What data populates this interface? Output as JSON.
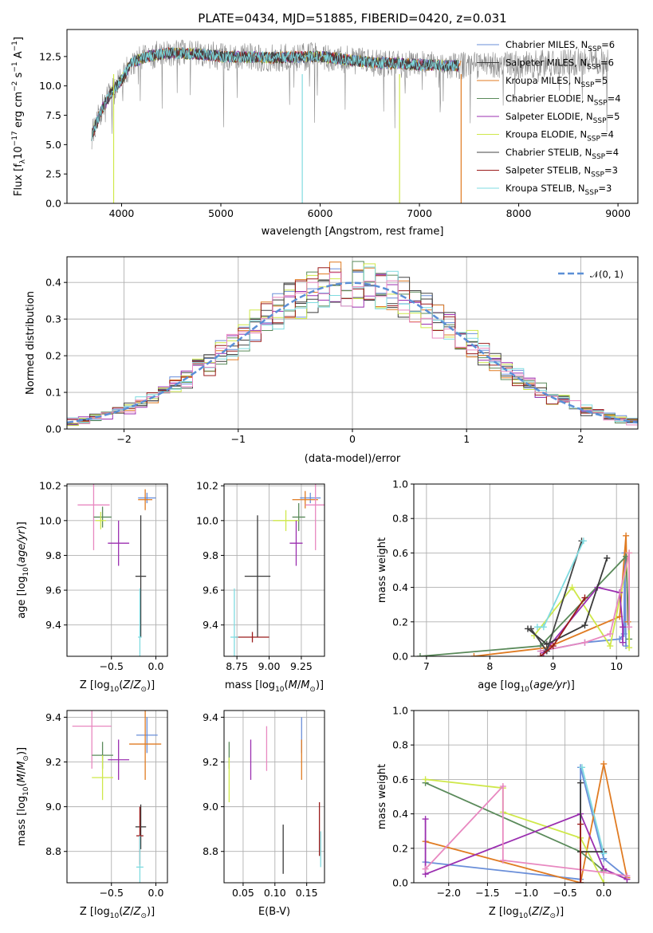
{
  "chart_data": [
    {
      "id": "spectrum",
      "type": "line",
      "title": "PLATE=0434, MJD=51885, FIBERID=0420, z=0.031",
      "xlabel": "wavelength [Angstrom, rest frame]",
      "ylabel": "Flux [f_λ10^-17 erg cm^-2 s^-1 A^-1]",
      "xlim": [
        3450,
        9200
      ],
      "ylim": [
        0,
        14.8
      ],
      "xticks": [
        4000,
        5000,
        6000,
        7000,
        8000,
        9000
      ],
      "yticks": [
        0.0,
        2.5,
        5.0,
        7.5,
        10.0,
        12.5
      ],
      "legend_position": "upper right",
      "legend": [
        {
          "label": "Chabrier MILES, N_SSP=6",
          "color": "#6a8fd9"
        },
        {
          "label": "Salpeter MILES, N_SSP=6",
          "color": "#3a3a3a"
        },
        {
          "label": "Kroupa MILES, N_SSP=5",
          "color": "#e07b22"
        },
        {
          "label": "Chabrier ELODIE, N_SSP=4",
          "color": "#5a8a5a"
        },
        {
          "label": "Salpeter ELODIE, N_SSP=5",
          "color": "#9b2fb0"
        },
        {
          "label": "Kroupa ELODIE, N_SSP=4",
          "color": "#cfe84a"
        },
        {
          "label": "Chabrier STELIB, N_SSP=4",
          "color": "#444444"
        },
        {
          "label": "Salpeter STELIB, N_SSP=3",
          "color": "#9b1c1c"
        },
        {
          "label": "Kroupa STELIB, N_SSP=3",
          "color": "#7fdbe0"
        }
      ],
      "continuum": {
        "x": [
          3700,
          3800,
          3900,
          4000,
          4100,
          4300,
          4500,
          4800,
          5000,
          5500,
          6000,
          6500,
          7000,
          7500,
          8000,
          8500,
          8900
        ],
        "y": [
          5.8,
          8.0,
          9.5,
          10.5,
          12.0,
          12.6,
          12.8,
          12.7,
          12.5,
          12.4,
          12.5,
          12.0,
          11.8,
          11.7,
          11.8,
          12.0,
          12.1
        ]
      },
      "gaps": [
        {
          "x": 3920,
          "color": "#cfe84a"
        },
        {
          "x": 5820,
          "color": "#7fdbe0"
        },
        {
          "x": 6800,
          "color": "#cfe84a"
        },
        {
          "x": 7420,
          "color": "#e07b22"
        }
      ],
      "data_x_range": [
        3700,
        7400
      ]
    },
    {
      "id": "residuals",
      "type": "histogram",
      "xlabel": "(data-model)/error",
      "ylabel": "Normed distribution",
      "xlim": [
        -2.5,
        2.5
      ],
      "ylim": [
        0,
        0.47
      ],
      "xticks": [
        -2,
        -1,
        0,
        1,
        2
      ],
      "yticks": [
        0.0,
        0.1,
        0.2,
        0.3,
        0.4
      ],
      "legend_position": "upper right",
      "legend": [
        {
          "label": "𝒩(0, 1)",
          "color": "#5b8fd6",
          "style": "dashed"
        }
      ],
      "bin_width": 0.1
    },
    {
      "id": "age_vs_Z",
      "type": "scatter",
      "xlabel": "Z [log10(Z/Z⊙)]",
      "ylabel": "age  [log10(age/yr)]",
      "xlim": [
        -1.0,
        0.13
      ],
      "ylim": [
        9.22,
        10.21
      ],
      "xticks": [
        -0.5,
        -0.0
      ],
      "xticklabels": [
        "−0.5",
        "0.0"
      ],
      "yticks": [
        9.4,
        9.6,
        9.8,
        10.0,
        10.2
      ],
      "points": [
        {
          "x": -0.1,
          "y": 10.13,
          "ex": 0.1,
          "ey": 0.03,
          "color": "#6a8fd9"
        },
        {
          "x": -0.12,
          "y": 10.12,
          "ex": 0.08,
          "ey": 0.06,
          "color": "#e07b22"
        },
        {
          "x": -0.7,
          "y": 10.09,
          "ex": 0.18,
          "ey": 0.26,
          "color": "#e888c0"
        },
        {
          "x": -0.6,
          "y": 10.02,
          "ex": 0.1,
          "ey": 0.06,
          "color": "#5a8a5a"
        },
        {
          "x": -0.62,
          "y": 10.0,
          "ex": 0.06,
          "ey": 0.05,
          "color": "#cfe84a"
        },
        {
          "x": -0.42,
          "y": 9.87,
          "ex": 0.12,
          "ey": 0.13,
          "color": "#9b2fb0"
        },
        {
          "x": -0.17,
          "y": 9.68,
          "ex": 0.06,
          "ey": 0.35,
          "color": "#3a3a3a"
        },
        {
          "x": -0.18,
          "y": 9.33,
          "ex": 0.02,
          "ey": 0.28,
          "color": "#7fdbe0"
        }
      ]
    },
    {
      "id": "age_vs_mass",
      "type": "scatter",
      "xlabel": "mass [log10(M/M⊙)]",
      "xlim": [
        8.65,
        9.43
      ],
      "ylim": [
        9.22,
        10.21
      ],
      "xticks": [
        8.75,
        9.0,
        9.25
      ],
      "yticks": [
        9.4,
        9.6,
        9.8,
        10.0,
        10.2
      ],
      "points": [
        {
          "x": 9.32,
          "y": 10.13,
          "ex": 0.08,
          "ey": 0.03,
          "color": "#6a8fd9"
        },
        {
          "x": 9.28,
          "y": 10.12,
          "ex": 0.1,
          "ey": 0.05,
          "color": "#e07b22"
        },
        {
          "x": 9.36,
          "y": 10.09,
          "ex": 0.08,
          "ey": 0.26,
          "color": "#e888c0"
        },
        {
          "x": 9.23,
          "y": 10.02,
          "ex": 0.05,
          "ey": 0.08,
          "color": "#5a8a5a"
        },
        {
          "x": 9.13,
          "y": 10.0,
          "ex": 0.1,
          "ey": 0.06,
          "color": "#cfe84a"
        },
        {
          "x": 9.21,
          "y": 9.87,
          "ex": 0.05,
          "ey": 0.13,
          "color": "#9b2fb0"
        },
        {
          "x": 8.91,
          "y": 9.68,
          "ex": 0.1,
          "ey": 0.35,
          "color": "#3a3a3a"
        },
        {
          "x": 8.87,
          "y": 9.33,
          "ex": 0.13,
          "ey": 0.03,
          "color": "#9b1c1c"
        },
        {
          "x": 8.73,
          "y": 9.33,
          "ex": 0.03,
          "ey": 0.28,
          "color": "#7fdbe0"
        }
      ]
    },
    {
      "id": "weight_vs_age",
      "type": "line",
      "xlabel": "age  [log10(age/yr)]",
      "ylabel": "mass weight",
      "xlim": [
        6.8,
        10.35
      ],
      "ylim": [
        0.0,
        1.0
      ],
      "xticks": [
        7,
        8,
        9,
        10
      ],
      "yticks": [
        0.0,
        0.2,
        0.4,
        0.6,
        0.8,
        1.0
      ],
      "series": [
        {
          "color": "#6a8fd9",
          "x": [
            8.8,
            9.5,
            10.05,
            10.12,
            10.13,
            10.15
          ],
          "y": [
            0.03,
            0.08,
            0.1,
            0.13,
            0.6,
            0.06
          ]
        },
        {
          "color": "#e07b22",
          "x": [
            7.75,
            8.9,
            10.05,
            10.15,
            10.18
          ],
          "y": [
            0.0,
            0.05,
            0.23,
            0.7,
            0.2
          ]
        },
        {
          "color": "#5a8a5a",
          "x": [
            6.9,
            8.8,
            10.15,
            10.2
          ],
          "y": [
            0.0,
            0.06,
            0.58,
            0.1
          ]
        },
        {
          "color": "#cfe84a",
          "x": [
            8.7,
            9.3,
            9.9,
            10.2,
            10.2
          ],
          "y": [
            0.12,
            0.4,
            0.06,
            0.6,
            0.05
          ]
        },
        {
          "color": "#9b2fb0",
          "x": [
            8.85,
            9.7,
            10.05,
            10.1,
            10.1
          ],
          "y": [
            0.02,
            0.4,
            0.37,
            0.17,
            0.08
          ]
        },
        {
          "color": "#e888c0",
          "x": [
            8.8,
            9.5,
            9.9,
            10.2,
            10.2
          ],
          "y": [
            0.03,
            0.08,
            0.13,
            0.6,
            0.17
          ]
        },
        {
          "color": "#3a3a3a",
          "x": [
            8.6,
            8.9,
            9.5,
            9.85
          ],
          "y": [
            0.16,
            0.07,
            0.18,
            0.57
          ]
        },
        {
          "color": "#444444",
          "x": [
            8.65,
            8.9,
            9.45
          ],
          "y": [
            0.16,
            0.03,
            0.67
          ]
        },
        {
          "color": "#9b1c1c",
          "x": [
            8.8,
            9.0,
            9.5
          ],
          "y": [
            0.0,
            0.06,
            0.34
          ]
        },
        {
          "color": "#7fdbe0",
          "x": [
            8.75,
            8.85,
            9.48
          ],
          "y": [
            0.17,
            0.17,
            0.67
          ]
        }
      ]
    },
    {
      "id": "mass_vs_Z",
      "type": "scatter",
      "xlabel": "Z [log10(Z/Z⊙)]",
      "ylabel": "mass [log10(M/M⊙)]",
      "xlim": [
        -1.0,
        0.13
      ],
      "ylim": [
        8.66,
        9.43
      ],
      "xticks": [
        -0.5,
        -0.0
      ],
      "xticklabels": [
        "−0.5",
        "0.0"
      ],
      "yticks": [
        8.8,
        9.0,
        9.2,
        9.4
      ],
      "points": [
        {
          "x": -0.1,
          "y": 9.32,
          "ex": 0.12,
          "ey": 0.08,
          "color": "#6a8fd9"
        },
        {
          "x": -0.12,
          "y": 9.28,
          "ex": 0.18,
          "ey": 0.16,
          "color": "#e07b22"
        },
        {
          "x": -0.72,
          "y": 9.36,
          "ex": 0.22,
          "ey": 0.19,
          "color": "#e888c0"
        },
        {
          "x": -0.6,
          "y": 9.23,
          "ex": 0.12,
          "ey": 0.06,
          "color": "#5a8a5a"
        },
        {
          "x": -0.6,
          "y": 9.13,
          "ex": 0.12,
          "ey": 0.1,
          "color": "#cfe84a"
        },
        {
          "x": -0.42,
          "y": 9.21,
          "ex": 0.12,
          "ey": 0.09,
          "color": "#9b2fb0"
        },
        {
          "x": -0.17,
          "y": 8.91,
          "ex": 0.06,
          "ey": 0.1,
          "color": "#3a3a3a"
        },
        {
          "x": -0.18,
          "y": 8.87,
          "ex": 0.04,
          "ey": 0.13,
          "color": "#9b1c1c"
        },
        {
          "x": -0.18,
          "y": 8.73,
          "ex": 0.04,
          "ey": 0.14,
          "color": "#7fdbe0"
        }
      ]
    },
    {
      "id": "mass_vs_EBV",
      "type": "scatter",
      "xlabel": "E(B-V)",
      "xlim": [
        0.02,
        0.178
      ],
      "ylim": [
        8.66,
        9.43
      ],
      "xticks": [
        0.05,
        0.1,
        0.15
      ],
      "yticks": [
        8.8,
        9.0,
        9.2,
        9.4
      ],
      "points": [
        {
          "x": 0.142,
          "y": 9.32,
          "ex": 0,
          "ey": 0.08,
          "color": "#6a8fd9"
        },
        {
          "x": 0.142,
          "y": 9.21,
          "ex": 0,
          "ey": 0.09,
          "color": "#e07b22"
        },
        {
          "x": 0.087,
          "y": 9.26,
          "ex": 0,
          "ey": 0.1,
          "color": "#e888c0"
        },
        {
          "x": 0.028,
          "y": 9.23,
          "ex": 0,
          "ey": 0.06,
          "color": "#5a8a5a"
        },
        {
          "x": 0.028,
          "y": 9.12,
          "ex": 0,
          "ey": 0.1,
          "color": "#cfe84a"
        },
        {
          "x": 0.062,
          "y": 9.21,
          "ex": 0,
          "ey": 0.09,
          "color": "#9b2fb0"
        },
        {
          "x": 0.113,
          "y": 8.81,
          "ex": 0,
          "ey": 0.11,
          "color": "#3a3a3a"
        },
        {
          "x": 0.17,
          "y": 8.9,
          "ex": 0,
          "ey": 0.12,
          "color": "#9b1c1c"
        },
        {
          "x": 0.172,
          "y": 8.81,
          "ex": 0,
          "ey": 0.08,
          "color": "#7fdbe0"
        }
      ]
    },
    {
      "id": "weight_vs_Z",
      "type": "line",
      "xlabel": "Z [log10(Z/Z⊙)]",
      "ylabel": "mass weight",
      "xlim": [
        -2.45,
        0.45
      ],
      "ylim": [
        0.0,
        1.0
      ],
      "xticks": [
        -2.0,
        -1.5,
        -1.0,
        -0.5,
        0.0
      ],
      "xticklabels": [
        "−2.0",
        "−1.5",
        "−1.0",
        "−0.5",
        "0.0"
      ],
      "yticks": [
        0.0,
        0.2,
        0.4,
        0.6,
        0.8,
        1.0
      ],
      "series": [
        {
          "color": "#6a8fd9",
          "x": [
            -2.3,
            -0.3,
            -0.3,
            0.0,
            0.3
          ],
          "y": [
            0.12,
            0.02,
            0.67,
            0.14,
            0.03
          ]
        },
        {
          "color": "#e07b22",
          "x": [
            -2.3,
            -0.3,
            0.0,
            0.3
          ],
          "y": [
            0.24,
            0.0,
            0.69,
            0.03
          ]
        },
        {
          "color": "#5a8a5a",
          "x": [
            -2.3,
            -0.3,
            0.0
          ],
          "y": [
            0.58,
            0.18,
            0.07
          ]
        },
        {
          "color": "#cfe84a",
          "x": [
            -2.3,
            -1.3,
            -1.3,
            -0.3,
            0.0
          ],
          "y": [
            0.6,
            0.55,
            0.41,
            0.26,
            0.0
          ]
        },
        {
          "color": "#9b2fb0",
          "x": [
            -2.3,
            -2.3,
            -0.3,
            0.0,
            0.3
          ],
          "y": [
            0.37,
            0.05,
            0.4,
            0.08,
            0.02
          ]
        },
        {
          "color": "#e888c0",
          "x": [
            -2.3,
            -1.3,
            -1.3,
            0.0,
            0.3
          ],
          "y": [
            0.08,
            0.56,
            0.13,
            0.06,
            0.04
          ]
        },
        {
          "color": "#3a3a3a",
          "x": [
            -0.3,
            -0.3,
            0.0
          ],
          "y": [
            0.58,
            0.18,
            0.18
          ]
        },
        {
          "color": "#9b1c1c",
          "x": [
            -0.3,
            -0.3
          ],
          "y": [
            0.34,
            0.0
          ]
        },
        {
          "color": "#7fdbe0",
          "x": [
            -0.28,
            0.0
          ],
          "y": [
            0.67,
            0.17
          ]
        }
      ]
    }
  ]
}
